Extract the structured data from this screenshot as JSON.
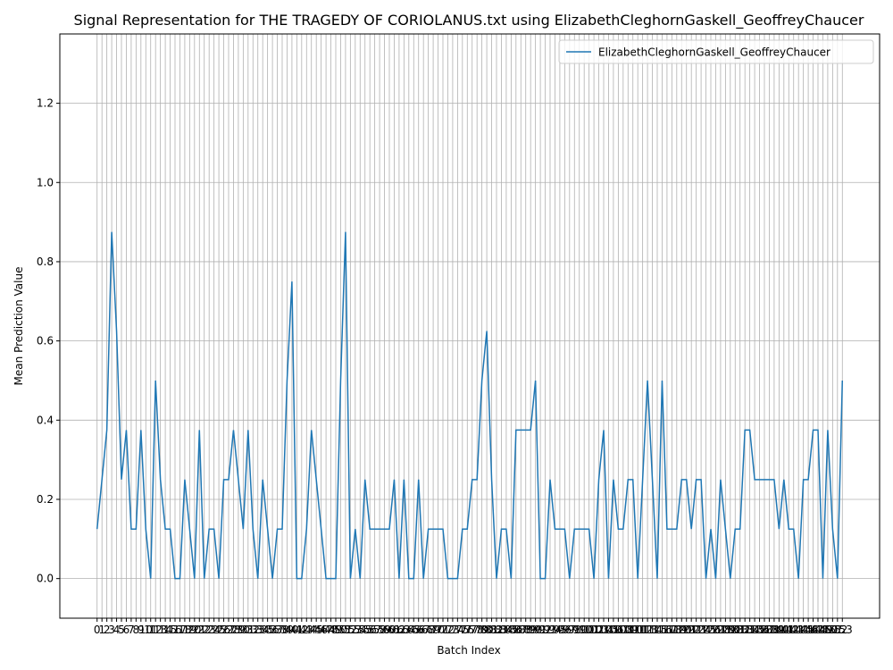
{
  "chart_data": {
    "type": "line",
    "title": "Signal Representation for THE TRAGEDY OF CORIOLANUS.txt using ElizabethCleghornGaskell_GeoffreyChaucer",
    "x_label": "Batch Index",
    "y_label": "Mean Prediction Value",
    "x": [
      0,
      1,
      2,
      3,
      4,
      5,
      6,
      7,
      8,
      9,
      10,
      11,
      12,
      13,
      14,
      15,
      16,
      17,
      18,
      19,
      20,
      21,
      22,
      23,
      24,
      25,
      26,
      27,
      28,
      29,
      30,
      31,
      32,
      33,
      34,
      35,
      36,
      37,
      38,
      39,
      40,
      41,
      42,
      43,
      44,
      45,
      46,
      47,
      48,
      49,
      50,
      51,
      52,
      53,
      54,
      55,
      56,
      57,
      58,
      59,
      60,
      61,
      62,
      63,
      64,
      65,
      66,
      67,
      68,
      69,
      70,
      71,
      72,
      73,
      74,
      75,
      76,
      77,
      78,
      79,
      80,
      81,
      82,
      83,
      84,
      85,
      86,
      87,
      88,
      89,
      90,
      91,
      92,
      93,
      94,
      95,
      96,
      97,
      98,
      99,
      100,
      101,
      102,
      103,
      104,
      105,
      106,
      107,
      108,
      109,
      110,
      111,
      112,
      113,
      114,
      115,
      116,
      117,
      118,
      119,
      120,
      121,
      122,
      123,
      124,
      125,
      126,
      127,
      128,
      129,
      130,
      131,
      132,
      133,
      134,
      135,
      136,
      137,
      138,
      139,
      140,
      141,
      142,
      143,
      144,
      145,
      146,
      147,
      148,
      149,
      150,
      151,
      152,
      153
    ],
    "series": [
      {
        "name": "ElizabethCleghornGaskell_GeoffreyChaucer",
        "color": "#1f77b4",
        "values": [
          0.125,
          0.25,
          0.375,
          0.875,
          0.625,
          0.25,
          0.375,
          0.125,
          0.125,
          0.375,
          0.125,
          0,
          0.5,
          0.25,
          0.125,
          0.125,
          0,
          0,
          0.25,
          0.125,
          0,
          0.375,
          0,
          0.125,
          0.125,
          0,
          0.25,
          0.25,
          0.375,
          0.25,
          0.125,
          0.375,
          0.125,
          0,
          0.25,
          0.125,
          0,
          0.125,
          0.125,
          0.5,
          0.75,
          0,
          0,
          0.125,
          0.375,
          0.25,
          0.125,
          0,
          0,
          0,
          0.5,
          0.875,
          0,
          0.125,
          0,
          0.25,
          0.125,
          0.125,
          0.125,
          0.125,
          0.125,
          0.25,
          0,
          0.25,
          0,
          0,
          0.25,
          0,
          0.125,
          0.125,
          0.125,
          0.125,
          0,
          0,
          0,
          0.125,
          0.125,
          0.25,
          0.25,
          0.5,
          0.625,
          0.25,
          0,
          0.125,
          0.125,
          0,
          0.375,
          0.375,
          0.375,
          0.375,
          0.5,
          0,
          0,
          0.25,
          0.125,
          0.125,
          0.125,
          0,
          0.125,
          0.125,
          0.125,
          0.125,
          0,
          0.25,
          0.375,
          0,
          0.25,
          0.125,
          0.125,
          0.25,
          0.25,
          0,
          0.25,
          0.5,
          0.25,
          0,
          0.5,
          0.125,
          0.125,
          0.125,
          0.25,
          0.25,
          0.125,
          0.25,
          0.25,
          0,
          0.125,
          0,
          0.25,
          0.125,
          0,
          0.125,
          0.125,
          0.375,
          0.375,
          0.25,
          0.25,
          0.25,
          0.25,
          0.25,
          0.125,
          0.25,
          0.125,
          0.125,
          0,
          0.25,
          0.25,
          0.375,
          0.375,
          0,
          0.375,
          0.125,
          0,
          0.5
        ]
      }
    ],
    "xlim": [
      -7.65,
      160.65
    ],
    "xticks": [
      0,
      1,
      2,
      3,
      4,
      5,
      6,
      7,
      8,
      9,
      10,
      11,
      12,
      13,
      14,
      15,
      16,
      17,
      18,
      19,
      20,
      21,
      22,
      23,
      24,
      25,
      26,
      27,
      28,
      29,
      30,
      31,
      32,
      33,
      34,
      35,
      36,
      37,
      38,
      39,
      40,
      41,
      42,
      43,
      44,
      45,
      46,
      47,
      48,
      49,
      50,
      51,
      52,
      53,
      54,
      55,
      56,
      57,
      58,
      59,
      60,
      61,
      62,
      63,
      64,
      65,
      66,
      67,
      68,
      69,
      70,
      71,
      72,
      73,
      74,
      75,
      76,
      77,
      78,
      79,
      80,
      81,
      82,
      83,
      84,
      85,
      86,
      87,
      88,
      89,
      90,
      91,
      92,
      93,
      94,
      95,
      96,
      97,
      98,
      99,
      100,
      101,
      102,
      103,
      104,
      105,
      106,
      107,
      108,
      109,
      110,
      111,
      112,
      113,
      114,
      115,
      116,
      117,
      118,
      119,
      120,
      121,
      122,
      123,
      124,
      125,
      126,
      127,
      128,
      129,
      130,
      131,
      132,
      133,
      134,
      135,
      136,
      137,
      138,
      139,
      140,
      141,
      142,
      143,
      144,
      145,
      146,
      147,
      148,
      149,
      150,
      151,
      152,
      153
    ],
    "ylim": [
      -0.1,
      1.375
    ],
    "yticks": [
      {
        "value": 0,
        "label": "0.0"
      },
      0.2,
      0.4,
      0.6,
      0.8,
      {
        "value": 1,
        "label": "1.0"
      },
      1.2
    ],
    "grid": true,
    "legend": "upper right"
  }
}
